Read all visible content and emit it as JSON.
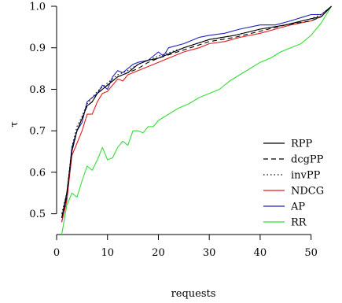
{
  "chart_data": {
    "type": "line",
    "xlabel": "requests",
    "ylabel": "τ",
    "xlim": [
      0,
      55
    ],
    "ylim": [
      0.45,
      1.0
    ],
    "x_ticks": [
      0,
      10,
      20,
      30,
      40,
      50
    ],
    "y_ticks": [
      0.5,
      0.6,
      0.7,
      0.8,
      0.9,
      1.0
    ],
    "x_tick_labels": [
      "0",
      "10",
      "20",
      "30",
      "40",
      "50"
    ],
    "y_tick_labels": [
      "0.5",
      "0.6",
      "0.7",
      "0.8",
      "0.9",
      "1.0"
    ],
    "grid": false,
    "legend_position": "bottom-right",
    "series": [
      {
        "name": "RPP",
        "color": "#000000",
        "dash": "solid",
        "x": [
          1,
          2,
          3,
          4,
          5,
          6,
          7,
          8,
          9,
          10,
          12,
          14,
          16,
          18,
          20,
          25,
          30,
          35,
          40,
          45,
          50,
          52,
          54
        ],
        "y": [
          0.49,
          0.55,
          0.65,
          0.7,
          0.73,
          0.76,
          0.77,
          0.79,
          0.8,
          0.81,
          0.83,
          0.84,
          0.86,
          0.87,
          0.875,
          0.9,
          0.92,
          0.93,
          0.945,
          0.955,
          0.97,
          0.975,
          1.0
        ]
      },
      {
        "name": "dcgPP",
        "color": "#000000",
        "dash": "dashed",
        "x": [
          1,
          2,
          3,
          4,
          5,
          6,
          7,
          8,
          9,
          10,
          12,
          14,
          16,
          18,
          20,
          25,
          30,
          35,
          40,
          45,
          50,
          52,
          54
        ],
        "y": [
          0.49,
          0.54,
          0.65,
          0.7,
          0.73,
          0.76,
          0.77,
          0.79,
          0.8,
          0.81,
          0.83,
          0.84,
          0.85,
          0.865,
          0.875,
          0.895,
          0.915,
          0.925,
          0.94,
          0.955,
          0.965,
          0.975,
          1.0
        ]
      },
      {
        "name": "invPP",
        "color": "#000000",
        "dash": "dotted",
        "x": [
          1,
          2,
          3,
          4,
          5,
          6,
          7,
          8,
          9,
          10,
          12,
          14,
          16,
          18,
          20,
          25,
          30,
          35,
          40,
          45,
          50,
          52,
          54
        ],
        "y": [
          0.5,
          0.55,
          0.66,
          0.71,
          0.735,
          0.765,
          0.78,
          0.795,
          0.805,
          0.815,
          0.835,
          0.845,
          0.86,
          0.87,
          0.88,
          0.9,
          0.92,
          0.93,
          0.945,
          0.955,
          0.97,
          0.98,
          1.0
        ]
      },
      {
        "name": "NDCG",
        "color": "#e41a1c",
        "dash": "solid",
        "x": [
          1,
          2,
          3,
          4,
          5,
          6,
          7,
          8,
          9,
          10,
          11,
          12,
          13,
          14,
          15,
          16,
          18,
          20,
          22,
          25,
          28,
          30,
          33,
          36,
          40,
          43,
          46,
          50,
          52,
          54
        ],
        "y": [
          0.48,
          0.53,
          0.64,
          0.67,
          0.7,
          0.74,
          0.74,
          0.77,
          0.79,
          0.795,
          0.81,
          0.825,
          0.82,
          0.835,
          0.84,
          0.845,
          0.855,
          0.865,
          0.875,
          0.89,
          0.9,
          0.91,
          0.915,
          0.925,
          0.935,
          0.945,
          0.955,
          0.965,
          0.975,
          1.0
        ]
      },
      {
        "name": "AP",
        "color": "#2222bb",
        "dash": "solid",
        "x": [
          1,
          2,
          3,
          4,
          5,
          6,
          7,
          8,
          9,
          10,
          11,
          12,
          13,
          14,
          15,
          16,
          18,
          20,
          21,
          22,
          25,
          28,
          30,
          33,
          36,
          40,
          43,
          46,
          50,
          52,
          54
        ],
        "y": [
          0.48,
          0.54,
          0.66,
          0.7,
          0.72,
          0.77,
          0.78,
          0.79,
          0.81,
          0.8,
          0.83,
          0.845,
          0.84,
          0.85,
          0.86,
          0.865,
          0.87,
          0.89,
          0.88,
          0.9,
          0.91,
          0.925,
          0.93,
          0.935,
          0.945,
          0.955,
          0.955,
          0.965,
          0.98,
          0.98,
          1.0
        ]
      },
      {
        "name": "RR",
        "color": "#33dd33",
        "dash": "solid",
        "x": [
          1,
          2,
          3,
          4,
          5,
          6,
          7,
          8,
          9,
          10,
          11,
          12,
          13,
          14,
          15,
          16,
          17,
          18,
          19,
          20,
          22,
          24,
          26,
          28,
          30,
          32,
          34,
          36,
          38,
          40,
          42,
          44,
          46,
          48,
          50,
          52,
          54
        ],
        "y": [
          0.45,
          0.52,
          0.55,
          0.54,
          0.58,
          0.615,
          0.605,
          0.63,
          0.66,
          0.63,
          0.635,
          0.66,
          0.675,
          0.665,
          0.7,
          0.7,
          0.695,
          0.71,
          0.71,
          0.725,
          0.74,
          0.755,
          0.765,
          0.78,
          0.79,
          0.8,
          0.82,
          0.835,
          0.85,
          0.865,
          0.875,
          0.89,
          0.9,
          0.91,
          0.93,
          0.96,
          1.0
        ]
      }
    ]
  }
}
